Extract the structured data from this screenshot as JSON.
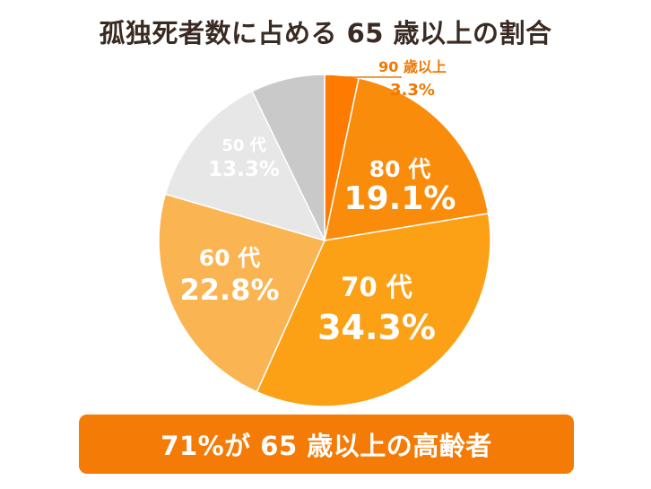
{
  "title": "孤独死者数に占める 65 歳以上の割合",
  "banner": "71%が 65 歳以上の高齢者",
  "chart_data": {
    "type": "pie",
    "title": "孤独死者数に占める 65 歳以上の割合",
    "start_angle_deg": 0,
    "direction": "clockwise",
    "slices": [
      {
        "label": "90 歳以上",
        "value": 3.3,
        "pct_label": "3.3%",
        "color": "#ff7a00",
        "label_color": "#f07800"
      },
      {
        "label": "80 代",
        "value": 19.1,
        "pct_label": "19.1%",
        "color": "#f98c0b",
        "label_color": "#ffffff"
      },
      {
        "label": "70 代",
        "value": 34.3,
        "pct_label": "34.3%",
        "color": "#fca016",
        "label_color": "#ffffff"
      },
      {
        "label": "60 代",
        "value": 22.8,
        "pct_label": "22.8%",
        "color": "#fbb452",
        "label_color": "#ffffff"
      },
      {
        "label": "50 代",
        "value": 13.3,
        "pct_label": "13.3%",
        "color": "#e7e7e7",
        "label_color": "#ffffff"
      },
      {
        "label": "",
        "value": 7.2,
        "pct_label": "",
        "color": "#c9c9c9",
        "label_color": "#ffffff"
      }
    ]
  }
}
